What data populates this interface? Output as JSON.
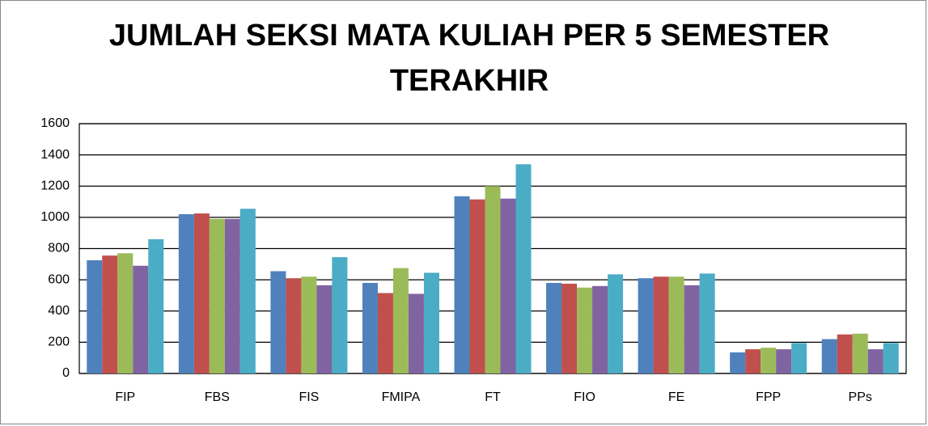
{
  "chart_data": {
    "type": "bar",
    "title": "JUMLAH SEKSI MATA KULIAH PER 5 SEMESTER TERAKHIR",
    "categories": [
      "FIP",
      "FBS",
      "FIS",
      "FMIPA",
      "FT",
      "FIO",
      "FE",
      "FPP",
      "PPs"
    ],
    "series": [
      {
        "color": "#4f81bd",
        "values": [
          725,
          1020,
          655,
          580,
          1135,
          580,
          610,
          135,
          220
        ]
      },
      {
        "color": "#c0504d",
        "values": [
          755,
          1025,
          610,
          515,
          1115,
          575,
          620,
          155,
          250
        ]
      },
      {
        "color": "#9bbb59",
        "values": [
          770,
          990,
          620,
          675,
          1200,
          550,
          620,
          165,
          255
        ]
      },
      {
        "color": "#8064a2",
        "values": [
          690,
          990,
          565,
          510,
          1120,
          560,
          565,
          155,
          155
        ]
      },
      {
        "color": "#4bacc6",
        "values": [
          860,
          1055,
          745,
          645,
          1340,
          635,
          640,
          195,
          195
        ]
      }
    ],
    "ylim": [
      0,
      1600
    ],
    "yticks": [
      0,
      200,
      400,
      600,
      800,
      1000,
      1200,
      1400,
      1600
    ],
    "grid": true
  }
}
